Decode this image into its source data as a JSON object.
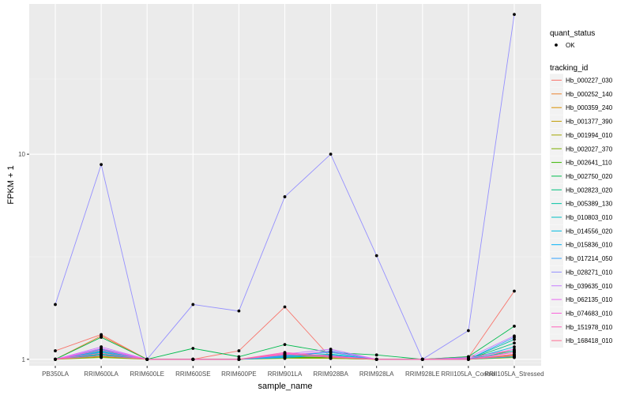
{
  "chart_data": {
    "type": "line",
    "xlabel": "sample_name",
    "ylabel": "FPKM + 1",
    "y_scale": "log10",
    "ylim": [
      0.93,
      54
    ],
    "y_ticks": [
      1,
      10
    ],
    "grid": true,
    "legend_placement": "right",
    "categories": [
      "PB350LA",
      "RRIM600LA",
      "RRIM600LE",
      "RRIM600SE",
      "RRIM600PE",
      "RRIM901LA",
      "RRIM928BA",
      "RRIM928LA",
      "RRIM928LE",
      "RRII105LA_Control",
      "RRII105LA_Stressed"
    ],
    "shape_legend": {
      "title": "quant_status",
      "items": [
        "OK"
      ]
    },
    "color_legend_title": "tracking_id",
    "series": [
      {
        "name": "Hb_000227_030",
        "color": "#F8766D",
        "values": [
          1.1,
          1.32,
          1.0,
          1.0,
          1.1,
          1.8,
          1.02,
          1.0,
          1.0,
          1.02,
          2.15
        ]
      },
      {
        "name": "Hb_000252_140",
        "color": "#EA8331",
        "values": [
          1.0,
          1.3,
          1.0,
          1.0,
          1.0,
          1.05,
          1.05,
          1.0,
          1.0,
          1.03,
          1.1
        ]
      },
      {
        "name": "Hb_000359_240",
        "color": "#D89000",
        "values": [
          1.0,
          1.05,
          1.0,
          1.0,
          1.0,
          1.03,
          1.02,
          1.0,
          1.0,
          1.0,
          1.05
        ]
      },
      {
        "name": "Hb_001377_390",
        "color": "#C09B00",
        "values": [
          1.0,
          1.08,
          1.0,
          1.0,
          1.0,
          1.04,
          1.03,
          1.0,
          1.0,
          1.01,
          1.08
        ]
      },
      {
        "name": "Hb_001994_010",
        "color": "#A3A500",
        "values": [
          1.0,
          1.03,
          1.0,
          1.0,
          1.0,
          1.02,
          1.01,
          1.0,
          1.0,
          1.0,
          1.03
        ]
      },
      {
        "name": "Hb_002027_370",
        "color": "#7CAE00",
        "values": [
          1.0,
          1.02,
          1.0,
          1.0,
          1.0,
          1.01,
          1.01,
          1.0,
          1.0,
          1.0,
          1.02
        ]
      },
      {
        "name": "Hb_002641_110",
        "color": "#39B600",
        "values": [
          1.0,
          1.04,
          1.0,
          1.0,
          1.0,
          1.02,
          1.02,
          1.0,
          1.0,
          1.0,
          1.04
        ]
      },
      {
        "name": "Hb_002750_020",
        "color": "#00BB4E",
        "values": [
          1.0,
          1.28,
          1.0,
          1.13,
          1.03,
          1.18,
          1.08,
          1.05,
          1.0,
          1.03,
          1.45
        ]
      },
      {
        "name": "Hb_002823_020",
        "color": "#00BF7D",
        "values": [
          1.0,
          1.06,
          1.0,
          1.0,
          1.0,
          1.04,
          1.03,
          1.0,
          1.0,
          1.0,
          1.2
        ]
      },
      {
        "name": "Hb_005389_130",
        "color": "#00C1A3",
        "values": [
          1.0,
          1.1,
          1.0,
          1.0,
          1.0,
          1.05,
          1.04,
          1.0,
          1.0,
          1.0,
          1.25
        ]
      },
      {
        "name": "Hb_010803_010",
        "color": "#00BFC4",
        "values": [
          1.0,
          1.08,
          1.0,
          1.0,
          1.0,
          1.03,
          1.06,
          1.0,
          1.0,
          1.0,
          1.1
        ]
      },
      {
        "name": "Hb_014556_020",
        "color": "#00BAE0",
        "values": [
          1.0,
          1.12,
          1.0,
          1.0,
          1.0,
          1.04,
          1.08,
          1.0,
          1.0,
          1.0,
          1.15
        ]
      },
      {
        "name": "Hb_015836_010",
        "color": "#00B0F6",
        "values": [
          1.0,
          1.05,
          1.0,
          1.0,
          1.0,
          1.02,
          1.05,
          1.0,
          1.0,
          1.0,
          1.03
        ]
      },
      {
        "name": "Hb_017214_050",
        "color": "#35A2FF",
        "values": [
          1.0,
          1.09,
          1.0,
          1.0,
          1.0,
          1.03,
          1.1,
          1.0,
          1.0,
          1.0,
          1.28
        ]
      },
      {
        "name": "Hb_028271_010",
        "color": "#9590FF",
        "values": [
          1.85,
          8.9,
          1.0,
          1.85,
          1.72,
          6.2,
          10.0,
          3.2,
          1.0,
          1.38,
          48.0
        ]
      },
      {
        "name": "Hb_039635_010",
        "color": "#C77CFF",
        "values": [
          1.0,
          1.15,
          1.0,
          1.0,
          1.0,
          1.06,
          1.12,
          1.0,
          1.0,
          1.02,
          1.3
        ]
      },
      {
        "name": "Hb_062135_010",
        "color": "#E76BF3",
        "values": [
          1.0,
          1.13,
          1.0,
          1.0,
          1.0,
          1.05,
          1.09,
          1.0,
          1.0,
          1.01,
          1.12
        ]
      },
      {
        "name": "Hb_074683_010",
        "color": "#FA62DB",
        "values": [
          1.0,
          1.11,
          1.0,
          1.0,
          1.0,
          1.07,
          1.04,
          1.0,
          1.0,
          1.0,
          1.08
        ]
      },
      {
        "name": "Hb_151978_010",
        "color": "#FF62BC",
        "values": [
          1.0,
          1.07,
          1.0,
          1.0,
          1.0,
          1.08,
          1.03,
          1.0,
          1.0,
          1.0,
          1.06
        ]
      },
      {
        "name": "Hb_168418_010",
        "color": "#FF6C91",
        "values": [
          1.0,
          1.04,
          1.0,
          1.0,
          1.0,
          1.06,
          1.02,
          1.0,
          1.0,
          1.0,
          1.04
        ]
      }
    ]
  }
}
